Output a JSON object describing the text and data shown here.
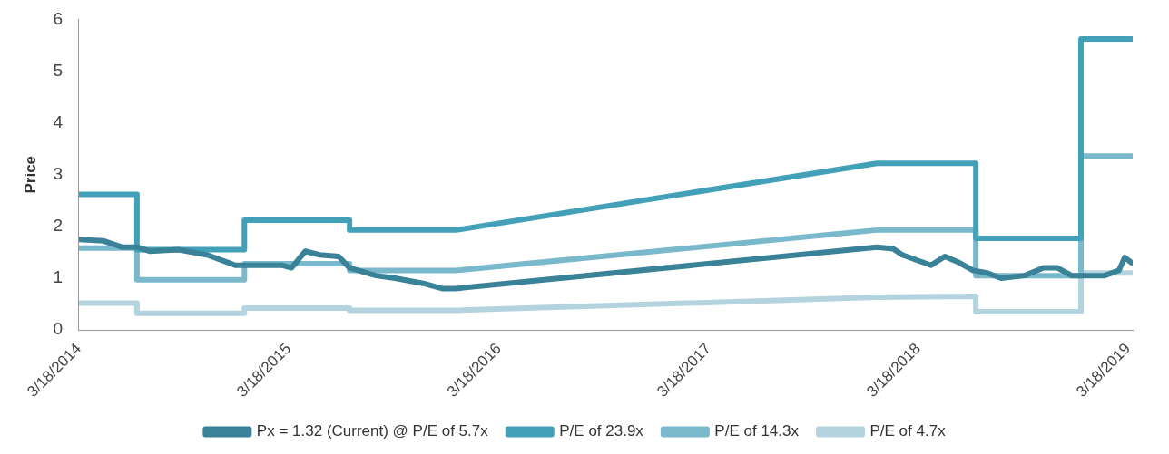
{
  "chart_data": {
    "type": "line",
    "ylabel": "Price",
    "ylim": [
      0,
      6
    ],
    "yticks": [
      0,
      1,
      2,
      3,
      4,
      5,
      6
    ],
    "xlim": [
      "2014-03-18",
      "2019-03-26"
    ],
    "xticks": [
      {
        "value": "2014-03-18",
        "label": "3/18/2014"
      },
      {
        "value": "2015-03-18",
        "label": "3/18/2015"
      },
      {
        "value": "2016-03-18",
        "label": "3/18/2016"
      },
      {
        "value": "2017-03-18",
        "label": "3/18/2017"
      },
      {
        "value": "2018-03-18",
        "label": "3/18/2018"
      },
      {
        "value": "2019-03-18",
        "label": "3/18/2019"
      }
    ],
    "grid": false,
    "legend": "bottom",
    "marker": "none",
    "line_style": "solid",
    "series": [
      {
        "name": "Px = 1.32 (Current) @ P/E of 5.7x",
        "color": "#3a8298",
        "x": [
          "2014-03-18",
          "2014-04-30",
          "2014-06-01",
          "2014-06-27",
          "2014-07-20",
          "2014-09-07",
          "2014-10-27",
          "2014-12-15",
          "2015-01-16",
          "2015-03-06",
          "2015-03-23",
          "2015-04-16",
          "2015-05-11",
          "2015-06-13",
          "2015-07-02",
          "2015-08-17",
          "2015-09-19",
          "2015-11-07",
          "2015-12-10",
          "2016-01-03",
          "2018-01-05",
          "2018-02-02",
          "2018-02-18",
          "2018-03-15",
          "2018-04-09",
          "2018-05-03",
          "2018-05-28",
          "2018-06-21",
          "2018-07-16",
          "2018-08-09",
          "2018-09-19",
          "2018-10-22",
          "2018-11-15",
          "2018-12-10",
          "2019-01-04",
          "2019-02-05",
          "2019-03-02",
          "2019-03-12",
          "2019-03-24"
        ],
        "values": [
          1.75,
          1.72,
          1.6,
          1.6,
          1.52,
          1.55,
          1.45,
          1.25,
          1.25,
          1.25,
          1.2,
          1.52,
          1.45,
          1.42,
          1.2,
          1.05,
          1.0,
          0.9,
          0.8,
          0.8,
          1.6,
          1.57,
          1.45,
          1.35,
          1.25,
          1.42,
          1.3,
          1.15,
          1.1,
          1.0,
          1.05,
          1.2,
          1.2,
          1.05,
          1.05,
          1.05,
          1.15,
          1.4,
          1.3
        ]
      },
      {
        "name": "P/E of 23.9x",
        "color": "#42a0b8",
        "x": [
          "2014-03-18",
          "2014-06-27",
          "2014-06-27",
          "2014-12-31",
          "2014-12-31",
          "2015-07-02",
          "2015-07-02",
          "2016-01-03",
          "2018-01-05",
          "2018-06-26",
          "2018-06-26",
          "2018-12-26",
          "2018-12-26",
          "2019-03-24"
        ],
        "values": [
          2.62,
          2.62,
          1.55,
          1.55,
          2.12,
          2.12,
          1.93,
          1.93,
          3.22,
          3.22,
          1.77,
          1.77,
          5.62,
          5.62
        ]
      },
      {
        "name": "P/E of 14.3x",
        "color": "#7ab8cc",
        "x": [
          "2014-03-18",
          "2014-06-27",
          "2014-06-27",
          "2014-12-31",
          "2014-12-31",
          "2015-07-02",
          "2015-07-02",
          "2016-01-03",
          "2018-01-05",
          "2018-06-26",
          "2018-06-26",
          "2018-12-26",
          "2018-12-26",
          "2019-03-24"
        ],
        "values": [
          1.58,
          1.58,
          0.97,
          0.97,
          1.28,
          1.28,
          1.15,
          1.15,
          1.93,
          1.93,
          1.05,
          1.05,
          3.36,
          3.36
        ]
      },
      {
        "name": "P/E of 4.7x",
        "color": "#b3d4de",
        "x": [
          "2014-03-18",
          "2014-06-27",
          "2014-06-27",
          "2014-12-31",
          "2014-12-31",
          "2015-07-02",
          "2015-07-02",
          "2016-01-03",
          "2018-01-05",
          "2018-06-26",
          "2018-06-26",
          "2018-12-26",
          "2018-12-26",
          "2019-03-24"
        ],
        "values": [
          0.52,
          0.52,
          0.32,
          0.32,
          0.42,
          0.42,
          0.38,
          0.38,
          0.63,
          0.65,
          0.35,
          0.35,
          1.1,
          1.1
        ]
      }
    ]
  }
}
